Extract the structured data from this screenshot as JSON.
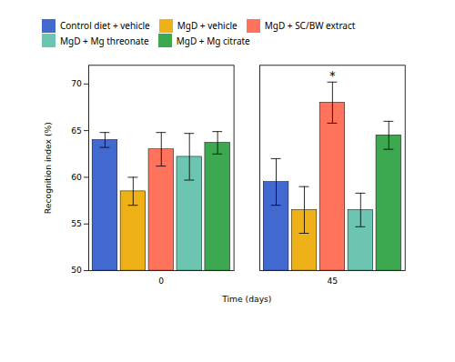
{
  "chart_data": {
    "type": "bar",
    "xlabel": "Time (days)",
    "ylabel": "Recognition index (%)",
    "categories": [
      "0",
      "45"
    ],
    "series": [
      {
        "name": "Control diet + vehicle",
        "values": [
          64.0,
          59.5
        ],
        "errors": [
          0.8,
          2.5
        ]
      },
      {
        "name": "MgD + vehicle",
        "values": [
          58.5,
          56.5
        ],
        "errors": [
          1.5,
          2.5
        ]
      },
      {
        "name": "MgD + SC/BW extract",
        "values": [
          63.0,
          68.0
        ],
        "errors": [
          1.8,
          2.2
        ]
      },
      {
        "name": "MgD + Mg threonate",
        "values": [
          62.2,
          56.5
        ],
        "errors": [
          2.5,
          1.8
        ]
      },
      {
        "name": "MgD + Mg citrate",
        "values": [
          63.7,
          64.5
        ],
        "errors": [
          1.2,
          1.5
        ]
      }
    ],
    "annotations": [
      {
        "text": "*",
        "category": "45",
        "series": "MgD + SC/BW extract"
      }
    ],
    "ylim": [
      50,
      72
    ],
    "yticks": [
      50,
      55,
      60,
      65,
      70
    ],
    "grid": false,
    "legend": "top"
  }
}
